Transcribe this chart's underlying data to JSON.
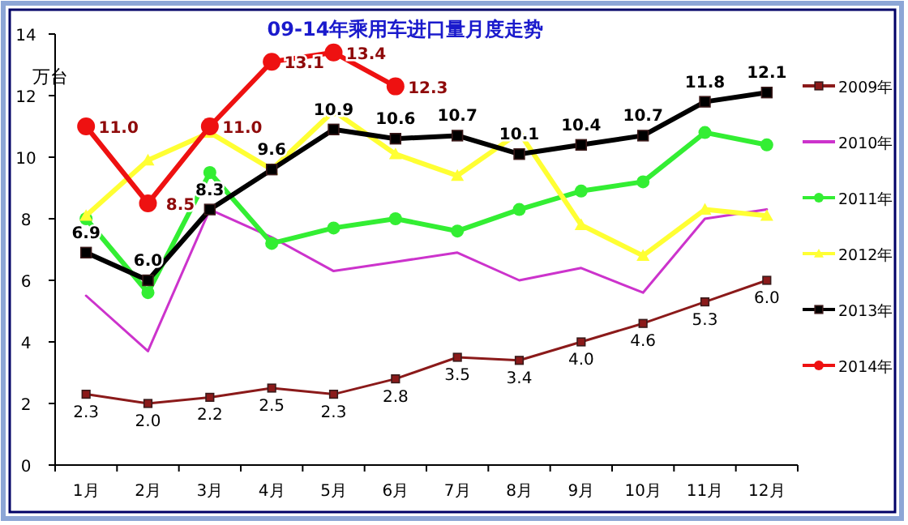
{
  "chart_data": {
    "type": "line",
    "title": "09-14年乘用车进口量月度走势",
    "ylabel": "万台",
    "categories": [
      "1月",
      "2月",
      "3月",
      "4月",
      "5月",
      "6月",
      "7月",
      "8月",
      "9月",
      "10月",
      "11月",
      "12月"
    ],
    "ylim": [
      0,
      14
    ],
    "yticks": [
      0,
      2,
      4,
      6,
      8,
      10,
      12,
      14
    ],
    "grid": false,
    "legend": "right",
    "series": [
      {
        "name": "2009年",
        "color": "#8b1a1a",
        "marker": "square",
        "values": [
          2.3,
          2.0,
          2.2,
          2.5,
          2.3,
          2.8,
          3.5,
          3.4,
          4.0,
          4.6,
          5.3,
          6.0
        ],
        "value_labels": [
          "2.3",
          "2.0",
          "2.2",
          "2.5",
          "2.3",
          "2.8",
          "3.5",
          "3.4",
          "4.0",
          "4.6",
          "5.3",
          "6.0"
        ]
      },
      {
        "name": "2010年",
        "color": "#cc33cc",
        "marker": "none",
        "values": [
          5.5,
          3.7,
          8.3,
          7.4,
          6.3,
          6.6,
          6.9,
          6.0,
          6.4,
          5.6,
          8.0,
          8.3
        ]
      },
      {
        "name": "2011年",
        "color": "#33ee33",
        "marker": "circle",
        "values": [
          8.0,
          5.6,
          9.5,
          7.2,
          7.7,
          8.0,
          7.6,
          8.3,
          8.9,
          9.2,
          10.8,
          10.4
        ]
      },
      {
        "name": "2012年",
        "color": "#ffff33",
        "marker": "triangle",
        "values": [
          8.1,
          9.9,
          10.8,
          9.6,
          11.5,
          10.1,
          9.4,
          10.8,
          7.8,
          6.8,
          8.3,
          8.1
        ]
      },
      {
        "name": "2013年",
        "color": "#000000",
        "marker": "square",
        "values": [
          6.9,
          6.0,
          8.3,
          9.6,
          10.9,
          10.6,
          10.7,
          10.1,
          10.4,
          10.7,
          11.8,
          12.1
        ],
        "value_labels": [
          "6.9",
          "6.0",
          "8.3",
          "9.6",
          "10.9",
          "10.6",
          "10.7",
          "10.1",
          "10.4",
          "10.7",
          "11.8",
          "12.1"
        ]
      },
      {
        "name": "2014年",
        "color": "#ee1111",
        "marker": "circle",
        "values": [
          11.0,
          8.5,
          11.0,
          13.1,
          13.4,
          12.3,
          null,
          null,
          null,
          null,
          null,
          null
        ],
        "value_labels": [
          "11.0",
          "8.5",
          "11.0",
          "13.1",
          "13.4",
          "12.3",
          null,
          null,
          null,
          null,
          null,
          null
        ]
      }
    ]
  }
}
